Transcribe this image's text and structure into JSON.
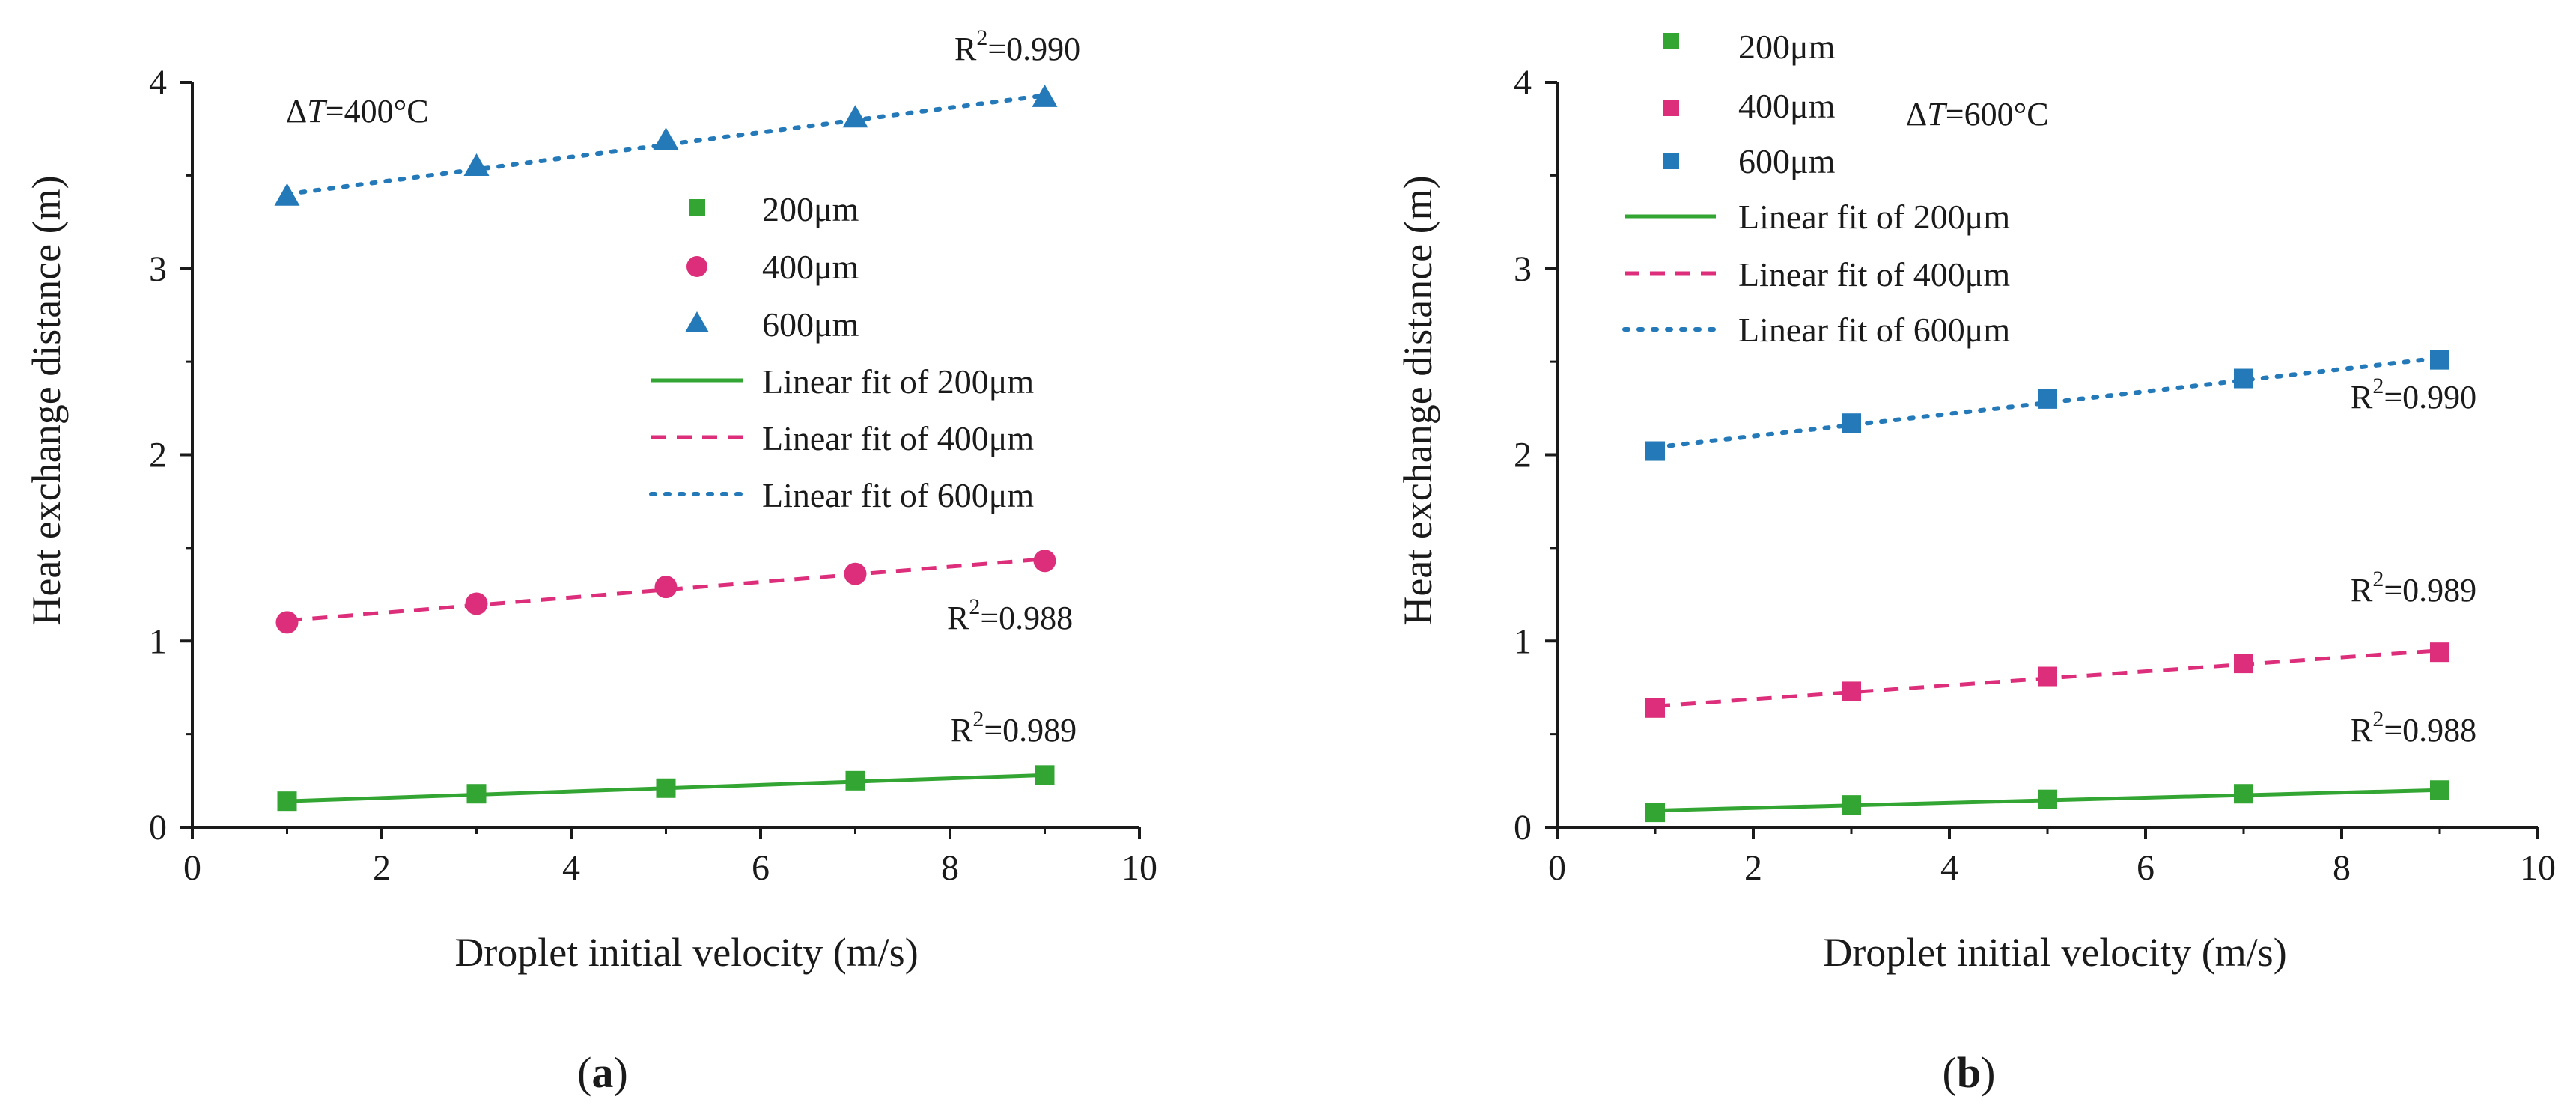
{
  "chart_data": [
    {
      "type": "scatter",
      "panel": "a",
      "caption": {
        "open": "(",
        "letter": "a",
        "close": ")"
      },
      "xlabel": "Droplet initial velocity (m/s)",
      "ylabel": "Heat exchange distance (m)",
      "xlim": [
        0,
        10
      ],
      "ylim": [
        0,
        4
      ],
      "xticks": [
        "0",
        "2",
        "4",
        "6",
        "8",
        "10"
      ],
      "yticks": [
        "0",
        "1",
        "2",
        "3",
        "4"
      ],
      "grid": false,
      "legend_position": "center-right",
      "annotation": {
        "delta": "Δ",
        "var": "T",
        "value": "=400°C"
      },
      "x": [
        1,
        3,
        5,
        7,
        9
      ],
      "series": [
        {
          "name": "200μm",
          "marker": "square",
          "values": [
            0.14,
            0.18,
            0.21,
            0.25,
            0.28
          ],
          "fit_name": "Linear fit of 200μm",
          "fit_style": "solid",
          "fit": [
            0.14,
            0.28
          ],
          "r2": {
            "base": "R",
            "exp": "2",
            "rest": "=0.989"
          }
        },
        {
          "name": "400μm",
          "marker": "circle",
          "values": [
            1.1,
            1.2,
            1.29,
            1.36,
            1.43
          ],
          "fit_name": "Linear fit of 400μm",
          "fit_style": "dashed",
          "fit": [
            1.11,
            1.44
          ],
          "r2": {
            "base": "R",
            "exp": "2",
            "rest": "=0.988"
          }
        },
        {
          "name": "600μm",
          "marker": "triangle",
          "values": [
            3.39,
            3.55,
            3.69,
            3.81,
            3.92
          ],
          "fit_name": "Linear fit of 600μm",
          "fit_style": "dotted",
          "fit": [
            3.4,
            3.93
          ],
          "r2": {
            "base": "R",
            "exp": "2",
            "rest": "=0.990"
          }
        }
      ]
    },
    {
      "type": "scatter",
      "panel": "b",
      "caption": {
        "open": "(",
        "letter": "b",
        "close": ")"
      },
      "xlabel": "Droplet initial velocity (m/s)",
      "ylabel": "Heat exchange distance (m)",
      "xlim": [
        0,
        10
      ],
      "ylim": [
        0,
        4
      ],
      "xticks": [
        "0",
        "2",
        "4",
        "6",
        "8",
        "10"
      ],
      "yticks": [
        "0",
        "1",
        "2",
        "3",
        "4"
      ],
      "grid": false,
      "legend_position": "top-left",
      "annotation": {
        "delta": "Δ",
        "var": "T",
        "value": "=600°C"
      },
      "x": [
        1,
        3,
        5,
        7,
        9
      ],
      "series": [
        {
          "name": "200μm",
          "marker": "square",
          "values": [
            0.08,
            0.12,
            0.15,
            0.18,
            0.2
          ],
          "fit_name": "Linear fit of 200μm",
          "fit_style": "solid",
          "fit": [
            0.09,
            0.2
          ],
          "r2": {
            "base": "R",
            "exp": "2",
            "rest": "=0.988"
          }
        },
        {
          "name": "400μm",
          "marker": "square",
          "values": [
            0.64,
            0.73,
            0.81,
            0.88,
            0.94
          ],
          "fit_name": "Linear fit of 400μm",
          "fit_style": "dashed",
          "fit": [
            0.65,
            0.95
          ],
          "r2": {
            "base": "R",
            "exp": "2",
            "rest": "=0.989"
          }
        },
        {
          "name": "600μm",
          "marker": "square",
          "values": [
            2.02,
            2.17,
            2.3,
            2.41,
            2.51
          ],
          "fit_name": "Linear fit of 600μm",
          "fit_style": "dotted",
          "fit": [
            2.04,
            2.52
          ],
          "r2": {
            "base": "R",
            "exp": "2",
            "rest": "=0.990"
          }
        }
      ]
    }
  ],
  "colors": {
    "series_200": "#33a532",
    "series_400": "#dc2e7a",
    "series_600": "#2479b9",
    "axis": "#1a1a1a"
  }
}
